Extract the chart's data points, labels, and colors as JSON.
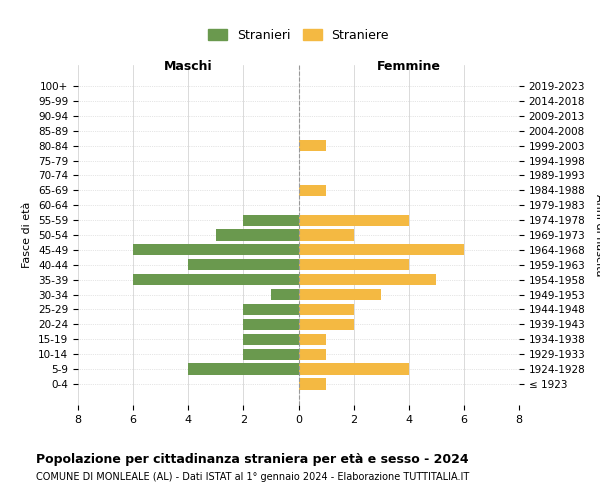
{
  "age_groups": [
    "100+",
    "95-99",
    "90-94",
    "85-89",
    "80-84",
    "75-79",
    "70-74",
    "65-69",
    "60-64",
    "55-59",
    "50-54",
    "45-49",
    "40-44",
    "35-39",
    "30-34",
    "25-29",
    "20-24",
    "15-19",
    "10-14",
    "5-9",
    "0-4"
  ],
  "birth_years": [
    "≤ 1923",
    "1924-1928",
    "1929-1933",
    "1934-1938",
    "1939-1943",
    "1944-1948",
    "1949-1953",
    "1954-1958",
    "1959-1963",
    "1964-1968",
    "1969-1973",
    "1974-1978",
    "1979-1983",
    "1984-1988",
    "1989-1993",
    "1994-1998",
    "1999-2003",
    "2004-2008",
    "2009-2013",
    "2014-2018",
    "2019-2023"
  ],
  "maschi": [
    0,
    0,
    0,
    0,
    0,
    0,
    0,
    0,
    0,
    2,
    3,
    6,
    4,
    6,
    1,
    2,
    2,
    2,
    2,
    4,
    0
  ],
  "femmine": [
    0,
    0,
    0,
    0,
    1,
    0,
    0,
    1,
    0,
    4,
    2,
    6,
    4,
    5,
    3,
    2,
    2,
    1,
    1,
    4,
    1
  ],
  "color_maschi": "#6a994e",
  "color_femmine": "#f4b942",
  "title": "Popolazione per cittadinanza straniera per età e sesso - 2024",
  "subtitle": "COMUNE DI MONLEALE (AL) - Dati ISTAT al 1° gennaio 2024 - Elaborazione TUTTITALIA.IT",
  "legend_maschi": "Stranieri",
  "legend_femmine": "Straniere",
  "xlabel_left": "Maschi",
  "xlabel_right": "Femmine",
  "ylabel_left": "Fasce di età",
  "ylabel_right": "Anni di nascita",
  "xlim": 8,
  "background_color": "#ffffff",
  "grid_color": "#cccccc"
}
